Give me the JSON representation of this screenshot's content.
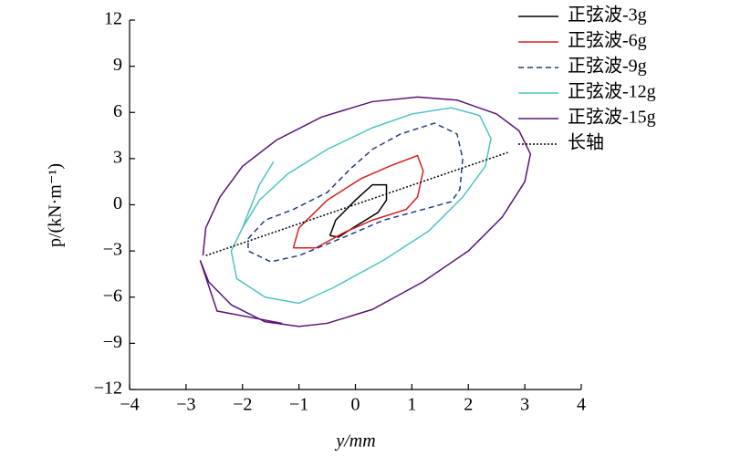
{
  "chart_data": {
    "type": "line",
    "x_label": "y/mm",
    "y_label": "p/(kN·m⁻¹)",
    "xlim": [
      -4,
      4
    ],
    "xticks": [
      {
        "value": -4,
        "label": "−4"
      },
      {
        "value": -3,
        "label": "−3"
      },
      {
        "value": -2,
        "label": "−2"
      },
      {
        "value": -1,
        "label": "−1"
      },
      0,
      1,
      2,
      3,
      4
    ],
    "ylim": [
      -12,
      12
    ],
    "yticks": [
      {
        "value": -12,
        "label": "−12"
      },
      {
        "value": -9,
        "label": "−9"
      },
      {
        "value": -6,
        "label": "−6"
      },
      {
        "value": -3,
        "label": "−3"
      },
      0,
      3,
      6,
      9,
      12
    ],
    "legend": "top-right",
    "series": [
      {
        "name": "正弦波-3g",
        "color": "#000000",
        "style": "solid",
        "x": [
          -0.45,
          -0.35,
          0.0,
          0.3,
          0.55,
          0.55,
          0.4,
          0.0,
          -0.3,
          -0.45
        ],
        "values": [
          -2.0,
          -1.0,
          0.3,
          1.3,
          1.3,
          0.3,
          -0.5,
          -1.4,
          -2.1,
          -2.0
        ]
      },
      {
        "name": "正弦波-6g",
        "color": "#d62020",
        "style": "solid",
        "x": [
          -1.1,
          -1.0,
          -0.5,
          0.1,
          0.6,
          1.1,
          1.2,
          1.1,
          0.9,
          0.3,
          -0.2,
          -0.7,
          -1.1
        ],
        "values": [
          -2.8,
          -1.5,
          0.3,
          1.7,
          2.5,
          3.2,
          2.2,
          0.5,
          -0.3,
          -1.0,
          -1.8,
          -2.8,
          -2.8
        ]
      },
      {
        "name": "正弦波-9g",
        "color": "#1f3c88",
        "style": "dashed",
        "x": [
          -1.9,
          -1.6,
          -1.1,
          -0.5,
          -0.1,
          0.3,
          0.8,
          1.4,
          1.8,
          1.9,
          1.85,
          1.7,
          1.2,
          0.5,
          -0.2,
          -1.0,
          -1.5,
          -1.9,
          -1.9
        ],
        "values": [
          -2.2,
          -1.0,
          -0.3,
          0.8,
          2.3,
          3.6,
          4.6,
          5.3,
          4.6,
          3.0,
          1.0,
          0.2,
          -0.3,
          -1.0,
          -2.1,
          -3.3,
          -3.7,
          -3.0,
          -2.2
        ]
      },
      {
        "name": "正弦波-12g",
        "color": "#4fc3c3",
        "style": "solid",
        "x": [
          -2.0,
          -1.7,
          -1.2,
          -0.5,
          0.3,
          1.0,
          1.7,
          2.2,
          2.4,
          2.3,
          1.9,
          1.3,
          0.5,
          -0.4,
          -1.0,
          -1.6,
          -2.1,
          -2.2,
          -2.0,
          -1.7,
          -1.45
        ],
        "values": [
          -1.5,
          0.3,
          2.0,
          3.6,
          5.0,
          5.9,
          6.3,
          5.8,
          4.3,
          2.5,
          0.5,
          -1.7,
          -3.6,
          -5.4,
          -6.4,
          -6.0,
          -4.8,
          -3.0,
          -1.5,
          1.3,
          2.8
        ]
      },
      {
        "name": "正弦波-15g",
        "color": "#5a1478",
        "style": "solid",
        "x": [
          -2.7,
          -2.65,
          -2.4,
          -2.0,
          -1.4,
          -0.6,
          0.3,
          1.1,
          1.8,
          2.5,
          2.9,
          3.1,
          3.0,
          2.6,
          2.0,
          1.2,
          0.3,
          -0.5,
          -1.0,
          -1.6,
          -2.2,
          -2.6,
          -2.75,
          -2.45,
          -1.3
        ],
        "values": [
          -3.3,
          -1.5,
          0.5,
          2.5,
          4.2,
          5.7,
          6.7,
          7.0,
          6.8,
          5.9,
          4.8,
          3.3,
          1.5,
          -0.8,
          -3.0,
          -5.0,
          -6.8,
          -7.7,
          -7.9,
          -7.6,
          -6.5,
          -5.0,
          -3.6,
          -6.9,
          -7.7
        ]
      },
      {
        "name": "长轴",
        "color": "#000000",
        "style": "dotted",
        "x": [
          -2.65,
          2.7
        ],
        "values": [
          -3.3,
          3.4
        ]
      }
    ]
  }
}
